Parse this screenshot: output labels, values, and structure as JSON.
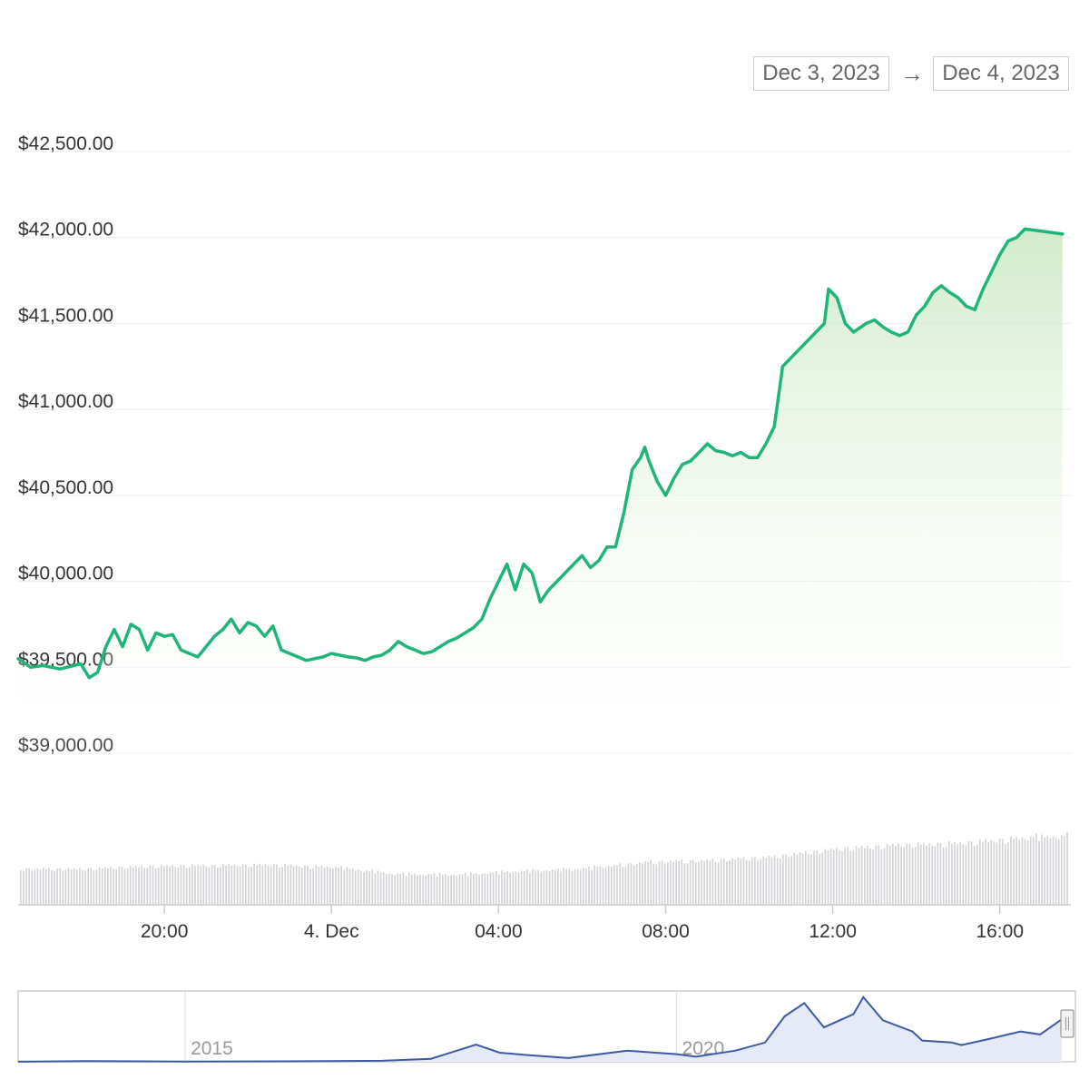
{
  "date_range": {
    "from": "Dec 3, 2023",
    "arrow": "→",
    "to": "Dec 4, 2023"
  },
  "colors": {
    "price_line": "#1fb57a",
    "area_fill_top": "#c9e8c0",
    "volume_bar": "#d2d2d6",
    "navigator_line": "#3a5ba4",
    "navigator_fill": "#e6eaf6",
    "grid": "#ececec"
  },
  "chart_data": {
    "type": "line",
    "title": "",
    "xlabel": "",
    "ylabel": "",
    "y_ticks": [
      "$42,500.00",
      "$42,000.00",
      "$41,500.00",
      "$41,000.00",
      "$40,500.00",
      "$40,000.00",
      "$39,500.00",
      "$39,000.00"
    ],
    "y_tick_values": [
      42500,
      42000,
      41500,
      41000,
      40500,
      40000,
      39500,
      39000
    ],
    "ylim": [
      39000,
      42500
    ],
    "xlim": [
      16.5,
      41.7
    ],
    "x_ticks": [
      "20:00",
      "4. Dec",
      "04:00",
      "08:00",
      "12:00",
      "16:00"
    ],
    "x_tick_values": [
      20,
      24,
      28,
      32,
      36,
      40
    ],
    "x_unit": "hours since Dec 3, 2023 00:00",
    "grid": true,
    "series": [
      {
        "kind": "price",
        "points": [
          [
            16.5,
            39550
          ],
          [
            16.8,
            39500
          ],
          [
            17.1,
            39510
          ],
          [
            17.5,
            39490
          ],
          [
            18.0,
            39520
          ],
          [
            18.2,
            39440
          ],
          [
            18.4,
            39470
          ],
          [
            18.6,
            39620
          ],
          [
            18.8,
            39720
          ],
          [
            19.0,
            39620
          ],
          [
            19.2,
            39750
          ],
          [
            19.4,
            39720
          ],
          [
            19.6,
            39600
          ],
          [
            19.8,
            39700
          ],
          [
            20.0,
            39680
          ],
          [
            20.2,
            39690
          ],
          [
            20.4,
            39600
          ],
          [
            20.6,
            39580
          ],
          [
            20.8,
            39560
          ],
          [
            21.0,
            39620
          ],
          [
            21.2,
            39680
          ],
          [
            21.4,
            39720
          ],
          [
            21.6,
            39780
          ],
          [
            21.8,
            39700
          ],
          [
            22.0,
            39760
          ],
          [
            22.2,
            39740
          ],
          [
            22.4,
            39680
          ],
          [
            22.6,
            39740
          ],
          [
            22.8,
            39600
          ],
          [
            23.0,
            39580
          ],
          [
            23.2,
            39560
          ],
          [
            23.4,
            39540
          ],
          [
            23.6,
            39550
          ],
          [
            23.8,
            39560
          ],
          [
            24.0,
            39580
          ],
          [
            24.2,
            39570
          ],
          [
            24.4,
            39560
          ],
          [
            24.6,
            39555
          ],
          [
            24.8,
            39540
          ],
          [
            25.0,
            39560
          ],
          [
            25.2,
            39570
          ],
          [
            25.4,
            39600
          ],
          [
            25.6,
            39650
          ],
          [
            25.8,
            39620
          ],
          [
            26.0,
            39600
          ],
          [
            26.2,
            39580
          ],
          [
            26.4,
            39590
          ],
          [
            26.6,
            39620
          ],
          [
            26.8,
            39650
          ],
          [
            27.0,
            39670
          ],
          [
            27.2,
            39700
          ],
          [
            27.4,
            39730
          ],
          [
            27.6,
            39780
          ],
          [
            27.8,
            39900
          ],
          [
            28.0,
            40000
          ],
          [
            28.2,
            40100
          ],
          [
            28.4,
            39950
          ],
          [
            28.6,
            40100
          ],
          [
            28.8,
            40050
          ],
          [
            29.0,
            39880
          ],
          [
            29.2,
            39950
          ],
          [
            29.4,
            40000
          ],
          [
            29.6,
            40050
          ],
          [
            29.8,
            40100
          ],
          [
            30.0,
            40150
          ],
          [
            30.2,
            40080
          ],
          [
            30.4,
            40120
          ],
          [
            30.6,
            40200
          ],
          [
            30.8,
            40200
          ],
          [
            31.0,
            40400
          ],
          [
            31.2,
            40650
          ],
          [
            31.4,
            40720
          ],
          [
            31.5,
            40780
          ],
          [
            31.6,
            40700
          ],
          [
            31.8,
            40580
          ],
          [
            32.0,
            40500
          ],
          [
            32.2,
            40600
          ],
          [
            32.4,
            40680
          ],
          [
            32.6,
            40700
          ],
          [
            32.8,
            40750
          ],
          [
            33.0,
            40800
          ],
          [
            33.2,
            40760
          ],
          [
            33.4,
            40750
          ],
          [
            33.6,
            40730
          ],
          [
            33.8,
            40750
          ],
          [
            34.0,
            40720
          ],
          [
            34.2,
            40720
          ],
          [
            34.4,
            40800
          ],
          [
            34.6,
            40900
          ],
          [
            34.8,
            41250
          ],
          [
            35.0,
            41300
          ],
          [
            35.2,
            41350
          ],
          [
            35.4,
            41400
          ],
          [
            35.6,
            41450
          ],
          [
            35.8,
            41500
          ],
          [
            35.9,
            41700
          ],
          [
            36.1,
            41650
          ],
          [
            36.3,
            41500
          ],
          [
            36.5,
            41450
          ],
          [
            36.8,
            41500
          ],
          [
            37.0,
            41520
          ],
          [
            37.2,
            41480
          ],
          [
            37.4,
            41450
          ],
          [
            37.6,
            41430
          ],
          [
            37.8,
            41450
          ],
          [
            38.0,
            41550
          ],
          [
            38.2,
            41600
          ],
          [
            38.4,
            41680
          ],
          [
            38.6,
            41720
          ],
          [
            38.8,
            41680
          ],
          [
            39.0,
            41650
          ],
          [
            39.2,
            41600
          ],
          [
            39.4,
            41580
          ],
          [
            39.6,
            41700
          ],
          [
            39.8,
            41800
          ],
          [
            40.0,
            41900
          ],
          [
            40.2,
            41980
          ],
          [
            40.4,
            42000
          ],
          [
            40.6,
            42050
          ],
          [
            41.5,
            42020
          ]
        ]
      },
      {
        "kind": "volume_relative",
        "note": "volume bars, relative to max",
        "points": [
          [
            16.5,
            0.42
          ],
          [
            18.0,
            0.42
          ],
          [
            19.5,
            0.45
          ],
          [
            21.0,
            0.46
          ],
          [
            22.5,
            0.47
          ],
          [
            24.0,
            0.44
          ],
          [
            25.5,
            0.36
          ],
          [
            27.0,
            0.35
          ],
          [
            28.5,
            0.39
          ],
          [
            30.0,
            0.42
          ],
          [
            31.5,
            0.5
          ],
          [
            33.0,
            0.52
          ],
          [
            34.5,
            0.56
          ],
          [
            36.0,
            0.65
          ],
          [
            37.5,
            0.7
          ],
          [
            39.0,
            0.72
          ],
          [
            40.5,
            0.78
          ],
          [
            41.5,
            0.8
          ]
        ]
      }
    ],
    "navigator": {
      "x_ticks": [
        "2015",
        "2020"
      ],
      "x_tick_values": [
        2015,
        2020
      ],
      "xlim": [
        2013.3,
        2023.92
      ],
      "ylim": [
        0,
        70000
      ],
      "points": [
        [
          2013.3,
          100
        ],
        [
          2014.0,
          600
        ],
        [
          2015.0,
          300
        ],
        [
          2016.0,
          450
        ],
        [
          2017.0,
          1000
        ],
        [
          2017.5,
          3000
        ],
        [
          2017.96,
          17000
        ],
        [
          2018.2,
          9000
        ],
        [
          2018.5,
          6500
        ],
        [
          2018.9,
          3700
        ],
        [
          2019.5,
          11000
        ],
        [
          2020.0,
          7500
        ],
        [
          2020.2,
          5000
        ],
        [
          2020.6,
          11000
        ],
        [
          2020.9,
          19000
        ],
        [
          2021.1,
          45000
        ],
        [
          2021.3,
          58000
        ],
        [
          2021.5,
          34000
        ],
        [
          2021.8,
          47000
        ],
        [
          2021.9,
          64000
        ],
        [
          2022.1,
          41000
        ],
        [
          2022.4,
          30000
        ],
        [
          2022.5,
          21000
        ],
        [
          2022.8,
          19000
        ],
        [
          2022.9,
          16500
        ],
        [
          2023.2,
          23000
        ],
        [
          2023.5,
          30000
        ],
        [
          2023.7,
          27000
        ],
        [
          2023.92,
          42000
        ]
      ]
    }
  }
}
